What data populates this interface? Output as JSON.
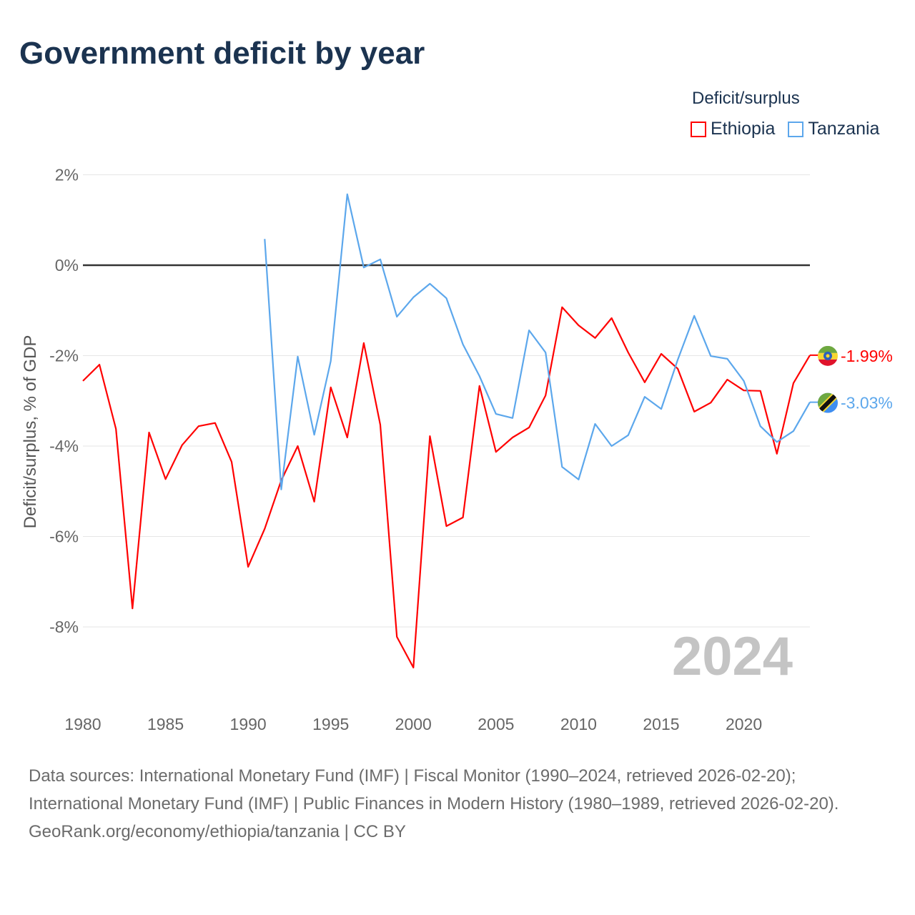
{
  "chart_data": {
    "type": "line",
    "title": "Government deficit by year",
    "xlabel": "",
    "ylabel": "Deficit/surplus, % of GDP",
    "ylim": [
      -9.5,
      2.4
    ],
    "xlim": [
      1980,
      2024
    ],
    "yticks": [
      2,
      0,
      -2,
      -4,
      -6,
      -8
    ],
    "ytick_labels": [
      "2%",
      "0%",
      "-2%",
      "-4%",
      "-6%",
      "-8%"
    ],
    "xticks": [
      1980,
      1985,
      1990,
      1995,
      2000,
      2005,
      2010,
      2015,
      2020
    ],
    "xtick_labels": [
      "1980",
      "1985",
      "1990",
      "1995",
      "2000",
      "2005",
      "2010",
      "2015",
      "2020"
    ],
    "grid": true,
    "legend_title": "Deficit/surplus",
    "legend_position": "top-right",
    "current_year": "2024",
    "series": [
      {
        "name": "Ethiopia",
        "color": "#ff0000",
        "end_label": "-1.99%",
        "flag": "ethiopia-flag",
        "x": [
          1980,
          1981,
          1982,
          1983,
          1984,
          1985,
          1986,
          1987,
          1988,
          1989,
          1990,
          1991,
          1992,
          1993,
          1994,
          1995,
          1996,
          1997,
          1998,
          1999,
          2000,
          2001,
          2002,
          2003,
          2004,
          2005,
          2006,
          2007,
          2008,
          2009,
          2010,
          2011,
          2012,
          2013,
          2014,
          2015,
          2016,
          2017,
          2018,
          2019,
          2020,
          2021,
          2022,
          2023,
          2024
        ],
        "values": [
          -2.56,
          -2.2,
          -3.62,
          -7.59,
          -3.7,
          -4.73,
          -3.98,
          -3.56,
          -3.49,
          -4.35,
          -6.67,
          -5.83,
          -4.76,
          -4.0,
          -5.23,
          -2.7,
          -3.81,
          -1.72,
          -3.53,
          -8.22,
          -8.9,
          -3.78,
          -5.77,
          -5.58,
          -2.67,
          -4.13,
          -3.81,
          -3.59,
          -2.88,
          -0.93,
          -1.33,
          -1.61,
          -1.17,
          -1.93,
          -2.59,
          -1.96,
          -2.29,
          -3.24,
          -3.04,
          -2.53,
          -2.77,
          -2.78,
          -4.17,
          -2.61,
          -1.99
        ]
      },
      {
        "name": "Tanzania",
        "color": "#5ca7ec",
        "end_label": "-3.03%",
        "flag": "tanzania-flag",
        "x": [
          1991,
          1992,
          1993,
          1994,
          1995,
          1996,
          1997,
          1998,
          1999,
          2000,
          2001,
          2002,
          2003,
          2004,
          2005,
          2006,
          2007,
          2008,
          2009,
          2010,
          2011,
          2012,
          2013,
          2014,
          2015,
          2016,
          2017,
          2018,
          2019,
          2020,
          2021,
          2022,
          2023,
          2024
        ],
        "values": [
          0.58,
          -4.96,
          -2.02,
          -3.75,
          -2.12,
          1.57,
          -0.05,
          0.13,
          -1.14,
          -0.71,
          -0.41,
          -0.73,
          -1.75,
          -2.45,
          -3.29,
          -3.38,
          -1.44,
          -1.93,
          -4.46,
          -4.74,
          -3.51,
          -4.0,
          -3.76,
          -2.91,
          -3.18,
          -2.09,
          -1.12,
          -2.01,
          -2.07,
          -2.56,
          -3.56,
          -3.91,
          -3.67,
          -3.03
        ]
      }
    ]
  },
  "footer": {
    "sources": "Data sources: International Monetary Fund (IMF) | Fiscal Monitor (1990–2024, retrieved 2026-02-20); International Monetary Fund (IMF) | Public Finances in Modern History (1980–1989, retrieved 2026-02-20).",
    "credit": "GeoRank.org/economy/ethiopia/tanzania | CC BY"
  }
}
